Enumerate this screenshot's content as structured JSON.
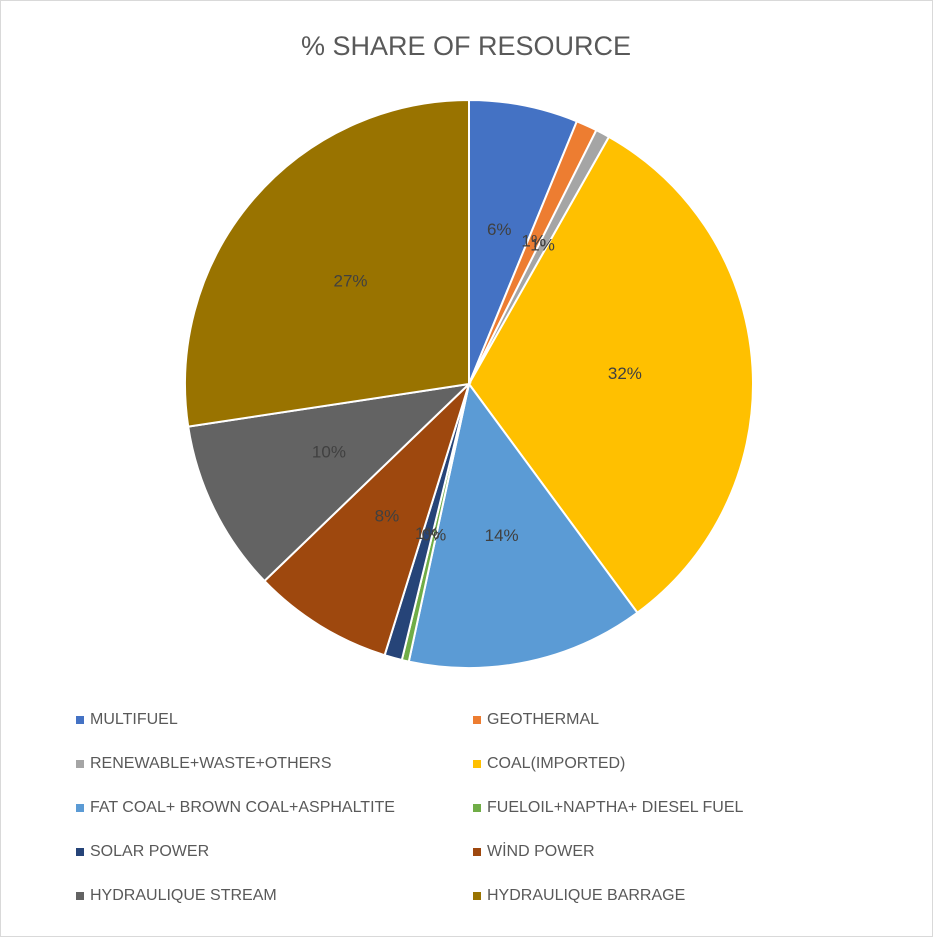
{
  "chart_data": {
    "type": "pie",
    "title": "% SHARE OF RESOURCE",
    "categories": [
      "MULTIFUEL",
      "GEOTHERMAL",
      "RENEWABLE+WASTE+OTHERS",
      "COAL(IMPORTED)",
      "FAT COAL+ BROWN COAL+ASPHALTITE",
      "FUELOIL+NAPTHA+ DIESEL FUEL",
      "SOLAR POWER",
      "WİND POWER",
      "HYDRAULIQUE STREAM",
      "HYDRAULIQUE BARRAGE"
    ],
    "values": [
      6.2,
      1.2,
      0.8,
      31.7,
      13.5,
      0.4,
      1.0,
      8.0,
      9.8,
      27.4
    ],
    "value_labels": [
      "6%",
      "1%",
      "1%",
      "32%",
      "14%",
      "0%",
      "1%",
      "8%",
      "10%",
      "27%"
    ],
    "colors": [
      "#4472c4",
      "#ed7d31",
      "#a5a5a5",
      "#ffc000",
      "#5b9bd5",
      "#70ad47",
      "#264478",
      "#9e480e",
      "#636363",
      "#997300"
    ],
    "legend": "bottom"
  }
}
